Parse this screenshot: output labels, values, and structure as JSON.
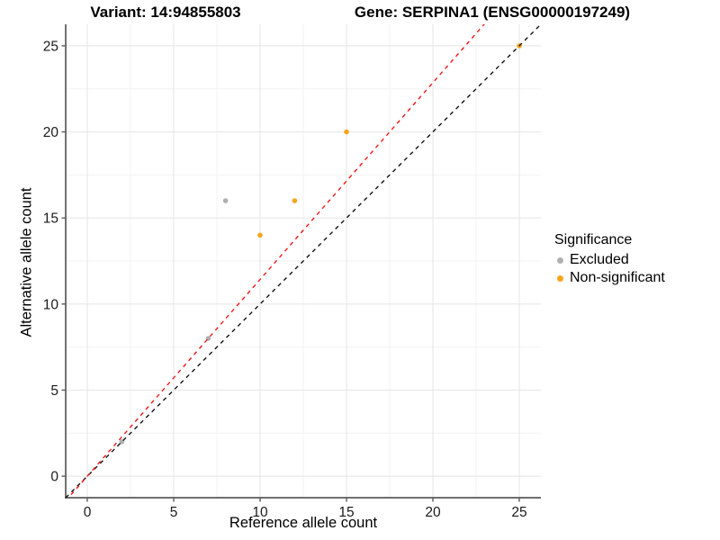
{
  "chart_data": {
    "type": "scatter",
    "title_left": "Variant: 14:94855803",
    "title_right": "Gene: SERPINA1 (ENSG00000197249)",
    "xlabel": "Reference allele count",
    "ylabel": "Alternative allele count",
    "xlim": [
      -1.25,
      26.25
    ],
    "ylim": [
      -1.25,
      26.25
    ],
    "x_ticks": [
      0,
      5,
      10,
      15,
      20,
      25
    ],
    "y_ticks": [
      0,
      5,
      10,
      15,
      20,
      25
    ],
    "x_minor_ticks": [
      2.5,
      7.5,
      12.5,
      17.5,
      22.5
    ],
    "y_minor_ticks": [
      2.5,
      7.5,
      12.5,
      17.5,
      22.5
    ],
    "grid": true,
    "series": [
      {
        "name": "Excluded",
        "color": "#B0B0B0",
        "points": [
          [
            2,
            2
          ],
          [
            7,
            8
          ],
          [
            8,
            16
          ]
        ]
      },
      {
        "name": "Non-significant",
        "color": "#F9A41C",
        "points": [
          [
            10,
            14
          ],
          [
            12,
            16
          ],
          [
            15,
            20
          ],
          [
            25,
            25
          ]
        ]
      }
    ],
    "ref_lines": [
      {
        "name": "identity-line",
        "slope": 1,
        "intercept": 0,
        "color": "#111111",
        "style": "dashed"
      },
      {
        "name": "expected-ratio-line",
        "slope": 1.143,
        "intercept": 0,
        "color": "#F01818",
        "style": "dashed"
      }
    ],
    "legend": {
      "title": "Significance",
      "position": "right",
      "items": [
        {
          "label": "Excluded",
          "color": "#B0B0B0"
        },
        {
          "label": "Non-significant",
          "color": "#F9A41C"
        }
      ]
    },
    "colors": {
      "grid_major": "#E8E8E8",
      "grid_minor": "#F3F3F3",
      "axis_line": "#5A5A5A",
      "tick_label": "#1A1A1A"
    }
  }
}
